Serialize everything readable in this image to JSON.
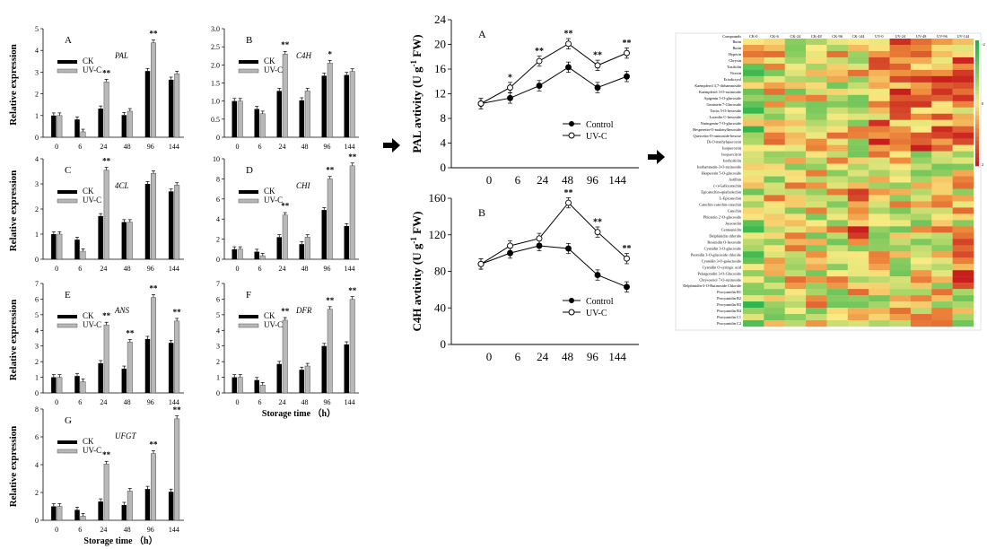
{
  "chart_data": [
    {
      "panel": "A",
      "gene": "PAL",
      "type": "bar",
      "categories": [
        "0",
        "6",
        "24",
        "48",
        "96",
        "144"
      ],
      "ylim": [
        0,
        5
      ],
      "yticks": [
        0,
        1,
        2,
        3,
        4,
        5
      ],
      "ylabel": "Relative expression",
      "xlabel": "",
      "legend": [
        "CK",
        "UV-C"
      ],
      "series": [
        {
          "name": "CK",
          "values": [
            1.0,
            0.82,
            1.32,
            1.02,
            3.05,
            2.65
          ]
        },
        {
          "name": "UV-C",
          "values": [
            1.0,
            0.25,
            2.55,
            1.2,
            4.35,
            2.92
          ]
        }
      ],
      "signif": [
        "",
        "",
        "**",
        "",
        "**",
        ""
      ]
    },
    {
      "panel": "B",
      "gene": "C4H",
      "type": "bar",
      "categories": [
        "0",
        "6",
        "24",
        "48",
        "96",
        "144"
      ],
      "ylim": [
        0,
        3
      ],
      "yticks": [
        "0",
        "0.5",
        "1.0",
        "1.5",
        "2.0",
        "2.5",
        "3.0"
      ],
      "ylabel": "",
      "xlabel": "",
      "legend": [
        "CK",
        "UV-C"
      ],
      "series": [
        {
          "name": "CK",
          "values": [
            1.0,
            0.78,
            1.28,
            1.02,
            1.7,
            1.72
          ]
        },
        {
          "name": "UV-C",
          "values": [
            1.0,
            0.65,
            2.3,
            1.28,
            2.05,
            1.82
          ]
        }
      ],
      "signif": [
        "",
        "",
        "**",
        "",
        "*",
        ""
      ]
    },
    {
      "panel": "C",
      "gene": "4CL",
      "type": "bar",
      "categories": [
        "0",
        "6",
        "24",
        "48",
        "96",
        "144"
      ],
      "ylim": [
        0,
        4
      ],
      "yticks": [
        0,
        1,
        2,
        3,
        4
      ],
      "ylabel": "Relative expression",
      "xlabel": "",
      "legend": [
        "CK",
        "UV-C"
      ],
      "series": [
        {
          "name": "CK",
          "values": [
            1.0,
            0.78,
            1.72,
            1.48,
            3.0,
            2.7
          ]
        },
        {
          "name": "UV-C",
          "values": [
            1.0,
            0.32,
            3.55,
            1.48,
            3.42,
            2.95
          ]
        }
      ],
      "signif": [
        "",
        "",
        "**",
        "",
        "",
        ""
      ]
    },
    {
      "panel": "D",
      "gene": "CHI",
      "type": "bar",
      "categories": [
        "0",
        "6",
        "24",
        "48",
        "96",
        "144"
      ],
      "ylim": [
        0,
        10
      ],
      "yticks": [
        0,
        2,
        4,
        6,
        8,
        10
      ],
      "ylabel": "",
      "xlabel": "",
      "legend": [
        "CK",
        "UV-C"
      ],
      "series": [
        {
          "name": "CK",
          "values": [
            1.0,
            0.75,
            2.2,
            1.5,
            4.9,
            3.3
          ]
        },
        {
          "name": "UV-C",
          "values": [
            1.0,
            0.35,
            4.4,
            2.2,
            8.0,
            9.3
          ]
        }
      ],
      "signif": [
        "",
        "",
        "**",
        "",
        "**",
        "**"
      ]
    },
    {
      "panel": "E",
      "gene": "ANS",
      "type": "bar",
      "categories": [
        "0",
        "6",
        "24",
        "48",
        "96",
        "144"
      ],
      "ylim": [
        0,
        7
      ],
      "yticks": [
        0,
        1,
        2,
        3,
        4,
        5,
        6,
        7
      ],
      "ylabel": "Relative expression",
      "xlabel": "",
      "legend": [
        "CK",
        "UV-C"
      ],
      "series": [
        {
          "name": "CK",
          "values": [
            1.0,
            1.08,
            1.9,
            1.55,
            3.45,
            3.2
          ]
        },
        {
          "name": "UV-C",
          "values": [
            1.0,
            0.72,
            4.35,
            3.25,
            6.1,
            4.6
          ]
        }
      ],
      "signif": [
        "",
        "",
        "**",
        "**",
        "**",
        "**"
      ]
    },
    {
      "panel": "F",
      "gene": "DFR",
      "type": "bar",
      "categories": [
        "0",
        "6",
        "24",
        "48",
        "96",
        "144"
      ],
      "ylim": [
        0,
        7
      ],
      "yticks": [
        0,
        1,
        2,
        3,
        4,
        5,
        6,
        7
      ],
      "ylabel": "",
      "xlabel": "Storage time （h）",
      "legend": [
        "CK",
        "UV-C"
      ],
      "series": [
        {
          "name": "CK",
          "values": [
            1.0,
            0.82,
            1.85,
            1.48,
            3.0,
            3.1
          ]
        },
        {
          "name": "UV-C",
          "values": [
            1.0,
            0.5,
            4.65,
            1.72,
            5.35,
            5.98
          ]
        }
      ],
      "signif": [
        "",
        "",
        "**",
        "",
        "**",
        "**"
      ]
    },
    {
      "panel": "G",
      "gene": "UFGT",
      "type": "bar",
      "categories": [
        "0",
        "6",
        "24",
        "48",
        "96",
        "144"
      ],
      "ylim": [
        0,
        8
      ],
      "yticks": [
        0,
        2,
        4,
        6,
        8
      ],
      "ylabel": "Relative expression",
      "xlabel": "Storage time （h）",
      "legend": [
        "CK",
        "UV-C"
      ],
      "series": [
        {
          "name": "CK",
          "values": [
            1.0,
            0.75,
            1.35,
            1.1,
            2.25,
            2.05
          ]
        },
        {
          "name": "UV-C",
          "values": [
            1.0,
            0.3,
            4.05,
            2.1,
            4.8,
            7.3
          ]
        }
      ],
      "signif": [
        "",
        "",
        "**",
        "",
        "**",
        "**"
      ]
    },
    {
      "panel": "A",
      "type": "line",
      "categories": [
        "0",
        "6",
        "24",
        "48",
        "96",
        "144"
      ],
      "ylim": [
        0,
        24
      ],
      "yticks": [
        0,
        4,
        8,
        12,
        16,
        20,
        24
      ],
      "ylabel": "PAL avtivity (U g-1 FW)",
      "xlabel": "",
      "legend": [
        "Control",
        "UV-C"
      ],
      "series": [
        {
          "name": "Control",
          "values": [
            10.4,
            11.3,
            13.3,
            16.3,
            13.0,
            14.8
          ]
        },
        {
          "name": "UV-C",
          "values": [
            10.4,
            13.0,
            17.3,
            20.1,
            16.6,
            18.6
          ]
        }
      ],
      "signif": [
        "",
        "*",
        "**",
        "**",
        "**",
        "**"
      ]
    },
    {
      "panel": "B",
      "type": "line",
      "categories": [
        "0",
        "6",
        "24",
        "48",
        "96",
        "144"
      ],
      "ylim": [
        0,
        160
      ],
      "yticks": [
        0,
        40,
        80,
        120,
        160
      ],
      "ylabel": "C4H avtivity (U g-1 FW)",
      "xlabel": "",
      "legend": [
        "Control",
        "UV-C"
      ],
      "series": [
        {
          "name": "Control",
          "values": [
            88,
            100,
            108,
            105,
            76,
            63
          ]
        },
        {
          "name": "UV-C",
          "values": [
            88,
            108,
            116,
            155,
            123,
            94
          ]
        }
      ],
      "signif": [
        "",
        "",
        "",
        "**",
        "**",
        "**"
      ]
    },
    {
      "panel": "heatmap",
      "type": "heatmap",
      "columns": [
        "CK-0",
        "CK-6",
        "CK-24",
        "CK-48",
        "CK-96",
        "CK-144",
        "UV-0",
        "UV-24",
        "UV-48",
        "UV-96",
        "UV-144"
      ],
      "rows": [
        "Compounds",
        "Rutin",
        "Rutin",
        "Hyperin",
        "Chrysin",
        "Taxifolin",
        "Vitexin",
        "Eriodictyol",
        "Kaempferol 3,7-dirhamnoside",
        "Kaempferol 3-O-rutinoside",
        "Apigenin 5-O-glucoside",
        "Genistein 7-Glucoside",
        "Tricin 5-O-hexoside",
        "Luteolin C-hexoside",
        "Naringenin-7-O-glucoside",
        "Hesperetin-O-malonylhexoside",
        "Quercetin-O-rutinoside-hexose",
        "Di-O-methylquercetin",
        "Isoquercetin",
        "Isoquercitrin",
        "Isorhoifolin",
        "Isorhamnetin-3-O-rutinoside",
        "Hesperetin 5-O-glucoside",
        "Astilbin",
        "(+)-Gallocatechin",
        "Epicatechin-epiafzelechin",
        "L-Epicatechin",
        "Catechin-catechin-catechin",
        "Catechin",
        "Phloretin 2'-O-glucoside",
        "Jaceosidin",
        "Centaureidin",
        "Delphinidin chloride",
        "Rosinidin O-hexoside",
        "Cyanidin 3-O-glucoside",
        "Peonidin 3-O-glucoside chloride",
        "Cyanidin 3-O-galactoside",
        "Cyanidin O-syringic acid",
        "Pelargonidin 3-O-Glucoside",
        "Chrysoeriol 7-O-rutinoside",
        "Delphinidin-3-O-Rutinoside Chloride",
        "Procyanidin B1",
        "Procyanidin B2",
        "Procyanidin B3",
        "Procyanidin B4",
        "Procyanidin C1",
        "Procyanidin C2"
      ],
      "scale": [
        "2",
        "0",
        "-2"
      ]
    }
  ]
}
